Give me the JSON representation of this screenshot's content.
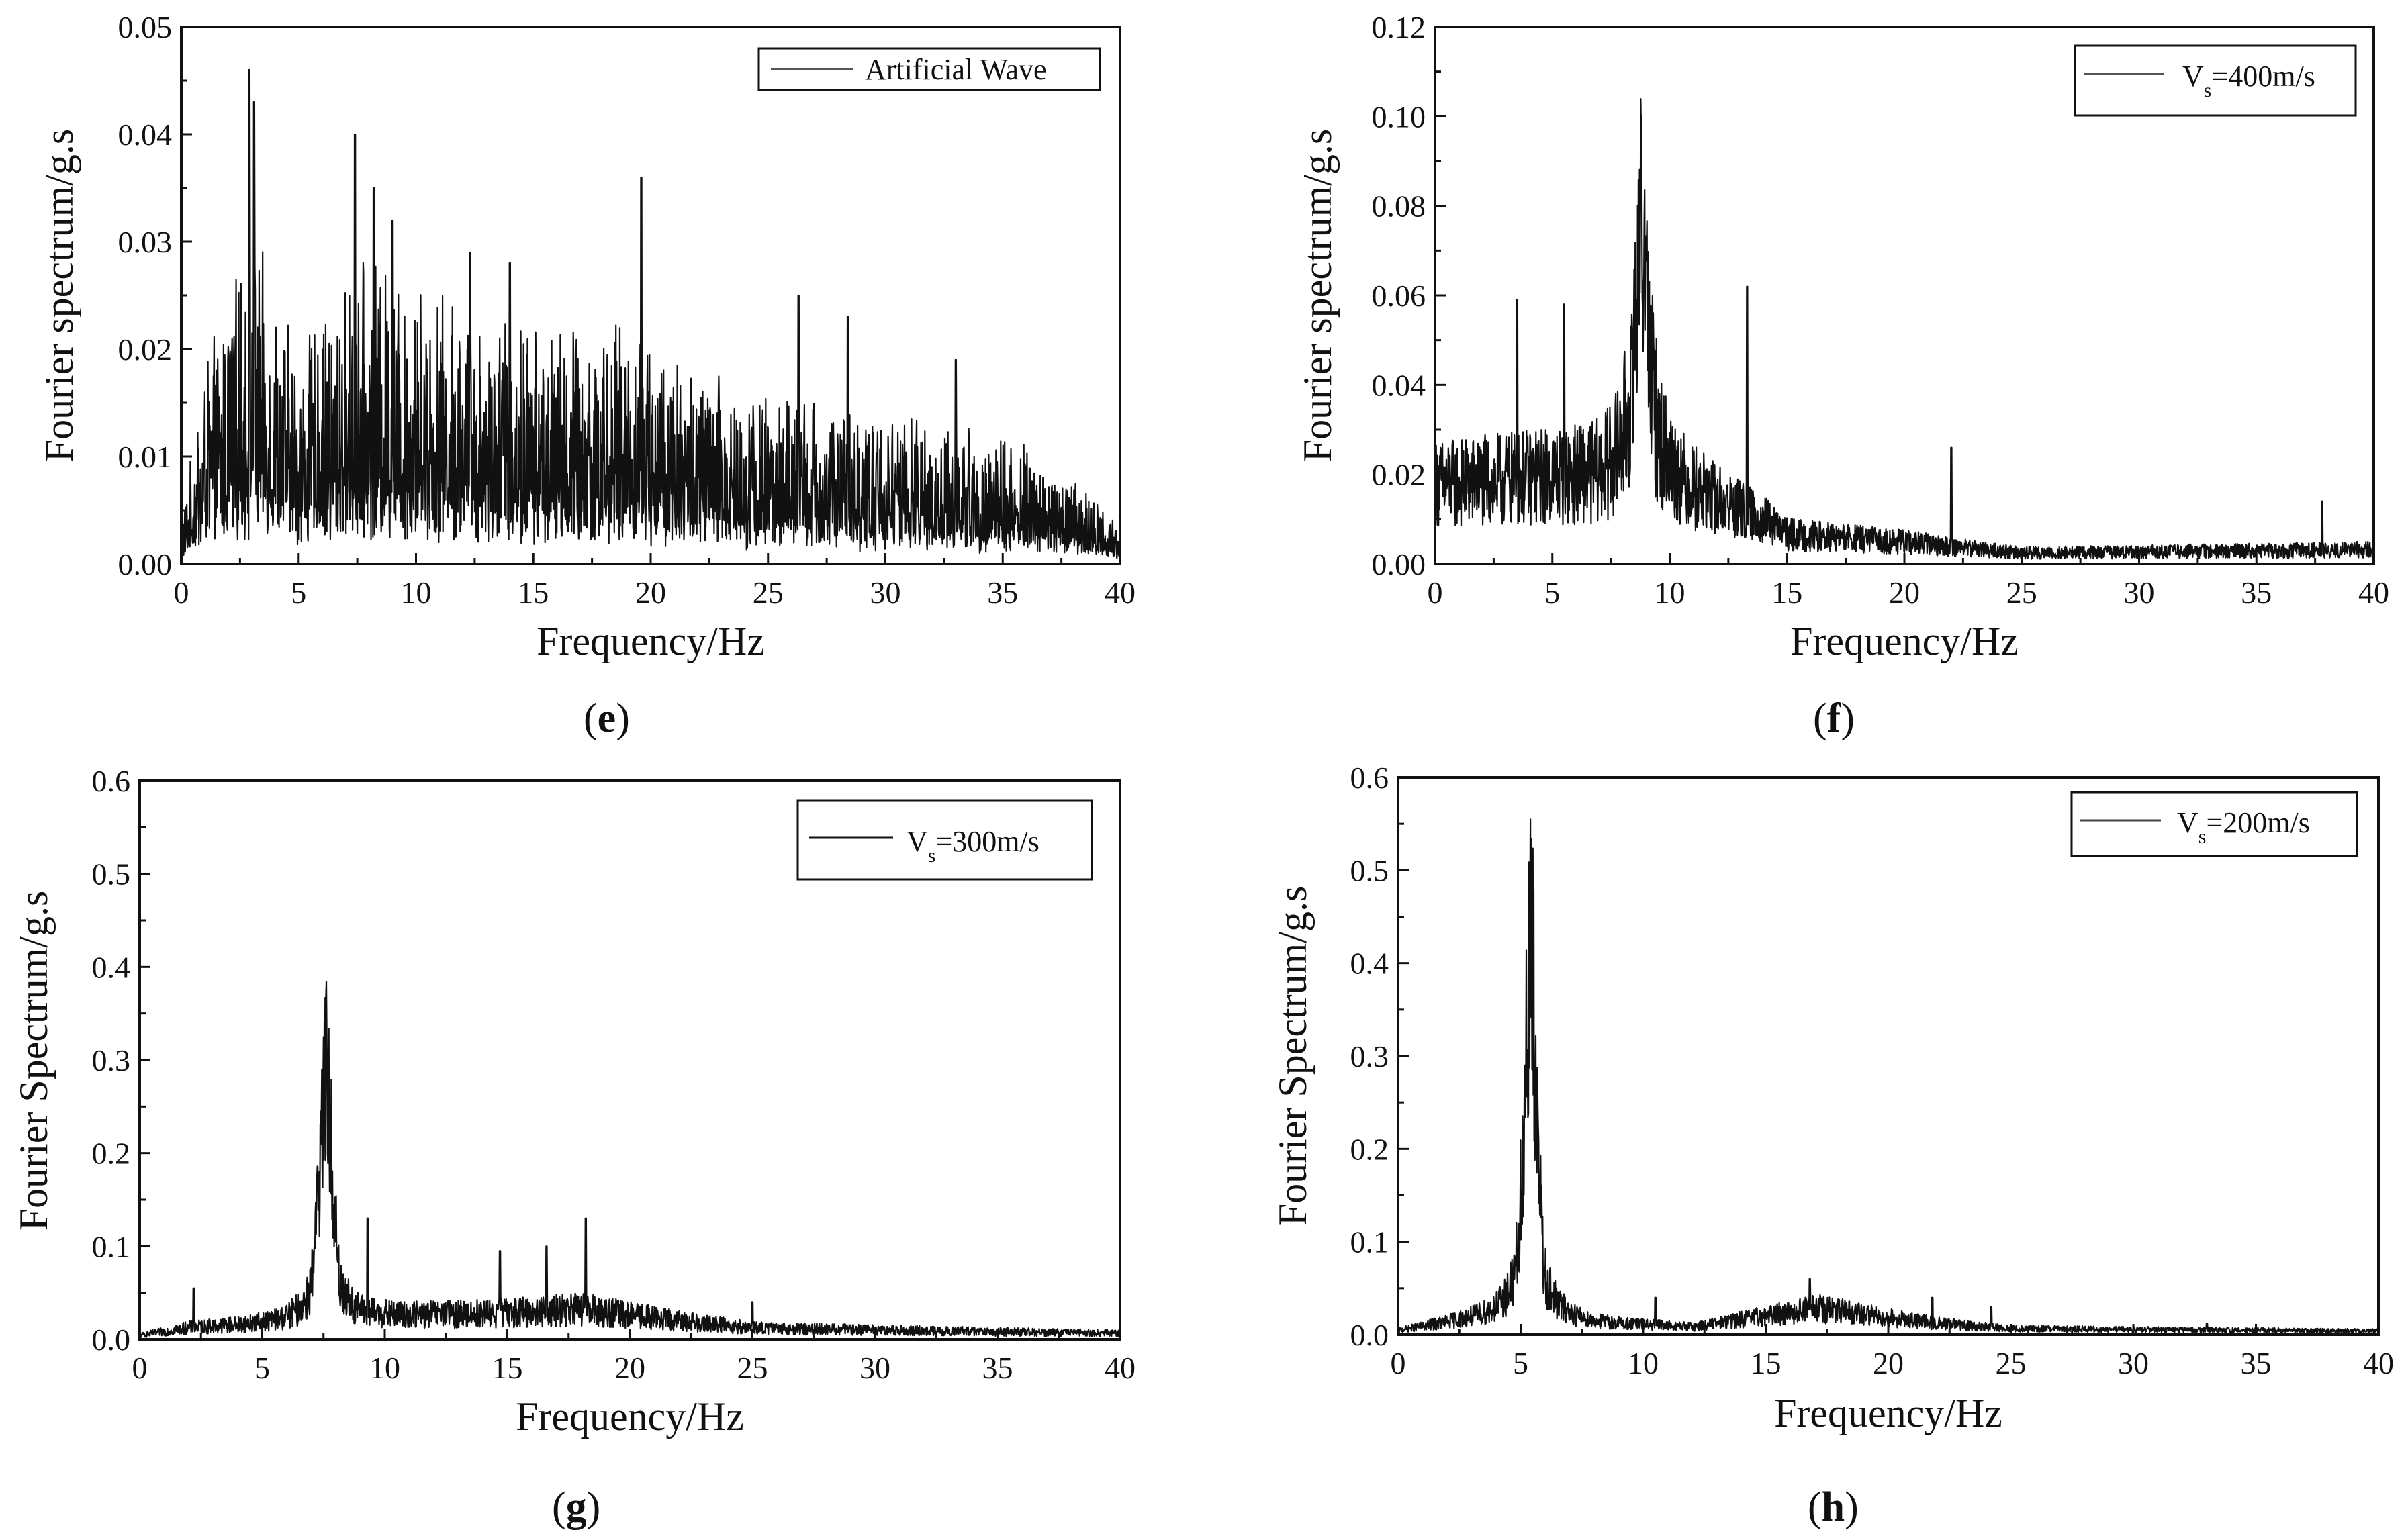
{
  "figure": {
    "background": "#ffffff",
    "line_color": "#111111"
  },
  "chart_data": [
    {
      "id": "e",
      "panel_label": "e",
      "type": "line",
      "xlabel": "Frequency/Hz",
      "ylabel": "Fourier spectrum/g.s",
      "xlim": [
        0,
        40
      ],
      "ylim": [
        0,
        0.05
      ],
      "xticks": [
        "0",
        "5",
        "10",
        "15",
        "20",
        "25",
        "30",
        "35",
        "40"
      ],
      "yticks": [
        "0.00",
        "0.01",
        "0.02",
        "0.03",
        "0.04",
        "0.05"
      ],
      "legend": {
        "label": "Artificial Wave",
        "subscript": "",
        "suffix": "",
        "position": "top-right"
      },
      "series": [
        {
          "name": "Artificial Wave",
          "color": "#111111",
          "shape": "broadband",
          "envelope_x": [
            0,
            1,
            2,
            3,
            5,
            8,
            10,
            15,
            20,
            22,
            25,
            30,
            35,
            38,
            40
          ],
          "envelope_y": [
            0.002,
            0.009,
            0.012,
            0.015,
            0.01,
            0.014,
            0.013,
            0.011,
            0.011,
            0.009,
            0.008,
            0.007,
            0.006,
            0.004,
            0.002
          ],
          "peaks_x": [
            2.9,
            3.1,
            7.4,
            8.2,
            9.0,
            12.3,
            14.0,
            19.6,
            26.3,
            28.4,
            33.0
          ],
          "peaks_y": [
            0.046,
            0.043,
            0.04,
            0.035,
            0.032,
            0.029,
            0.028,
            0.036,
            0.025,
            0.023,
            0.019
          ]
        }
      ]
    },
    {
      "id": "f",
      "panel_label": "f",
      "type": "line",
      "xlabel": "Frequency/Hz",
      "ylabel": "Fourier spectrum/g.s",
      "xlim": [
        0,
        40
      ],
      "ylim": [
        0,
        0.12
      ],
      "xticks": [
        "0",
        "5",
        "10",
        "15",
        "20",
        "25",
        "30",
        "35",
        "40"
      ],
      "yticks": [
        "0.00",
        "0.02",
        "0.04",
        "0.06",
        "0.08",
        "0.10",
        "0.12"
      ],
      "legend": {
        "label": "V",
        "subscript": "s",
        "suffix": "=400m/s",
        "position": "top-right"
      },
      "series": [
        {
          "name": "Vs=400m/s",
          "color": "#111111",
          "shape": "resonance",
          "peak_x": 8.8,
          "peak_y": 0.1,
          "width": 0.45,
          "base_x": [
            0,
            5,
            10,
            14,
            15,
            20,
            25,
            40
          ],
          "base_y": [
            0.022,
            0.024,
            0.022,
            0.012,
            0.008,
            0.006,
            0.003,
            0.004
          ],
          "peaks_x": [
            13.3,
            3.5,
            5.5,
            22.0,
            37.8
          ],
          "peaks_y": [
            0.062,
            0.059,
            0.058,
            0.026,
            0.014
          ]
        }
      ]
    },
    {
      "id": "g",
      "panel_label": "g",
      "type": "line",
      "xlabel": "Frequency/Hz",
      "ylabel": "Fourier Spectrum/g.s",
      "xlim": [
        0,
        40
      ],
      "ylim": [
        0,
        0.6
      ],
      "xticks": [
        "0",
        "5",
        "10",
        "15",
        "20",
        "25",
        "30",
        "35",
        "40"
      ],
      "yticks": [
        "0.0",
        "0.1",
        "0.2",
        "0.3",
        "0.4",
        "0.5",
        "0.6"
      ],
      "legend": {
        "label": "V",
        "subscript": "s",
        "suffix": "=300m/s",
        "position": "top-right"
      },
      "series": [
        {
          "name": "Vs=300m/s",
          "color": "#111111",
          "shape": "resonance",
          "peak_x": 7.6,
          "peak_y": 0.37,
          "width": 0.35,
          "base_x": [
            0,
            2,
            5,
            10,
            15,
            18,
            22,
            25,
            40
          ],
          "base_y": [
            0.005,
            0.015,
            0.02,
            0.03,
            0.035,
            0.04,
            0.025,
            0.015,
            0.008
          ],
          "peaks_x": [
            18.2,
            9.3,
            14.7,
            16.6,
            2.2,
            25.0
          ],
          "peaks_y": [
            0.13,
            0.13,
            0.095,
            0.1,
            0.055,
            0.04
          ]
        }
      ]
    },
    {
      "id": "h",
      "panel_label": "h",
      "type": "line",
      "xlabel": "Frequency/Hz",
      "ylabel": "Fourier Spectrum/g.s",
      "xlim": [
        0,
        40
      ],
      "ylim": [
        0,
        0.6
      ],
      "xticks": [
        "0",
        "5",
        "10",
        "15",
        "20",
        "25",
        "30",
        "35",
        "40"
      ],
      "yticks": [
        "0.0",
        "0.1",
        "0.2",
        "0.3",
        "0.4",
        "0.5",
        "0.6"
      ],
      "legend": {
        "label": "V",
        "subscript": "s",
        "suffix": "=200m/s",
        "position": "top-right"
      },
      "series": [
        {
          "name": "Vs=200m/s",
          "color": "#111111",
          "shape": "resonance",
          "peak_x": 5.4,
          "peak_y": 0.555,
          "width": 0.3,
          "base_x": [
            0,
            3,
            5,
            8,
            12,
            16,
            17,
            22,
            25,
            40
          ],
          "base_y": [
            0.005,
            0.02,
            0.03,
            0.015,
            0.01,
            0.03,
            0.035,
            0.015,
            0.008,
            0.005
          ],
          "peaks_x": [
            16.8,
            21.8,
            10.5,
            24.2,
            33.0
          ],
          "peaks_y": [
            0.06,
            0.04,
            0.04,
            0.03,
            0.012
          ]
        }
      ]
    }
  ]
}
